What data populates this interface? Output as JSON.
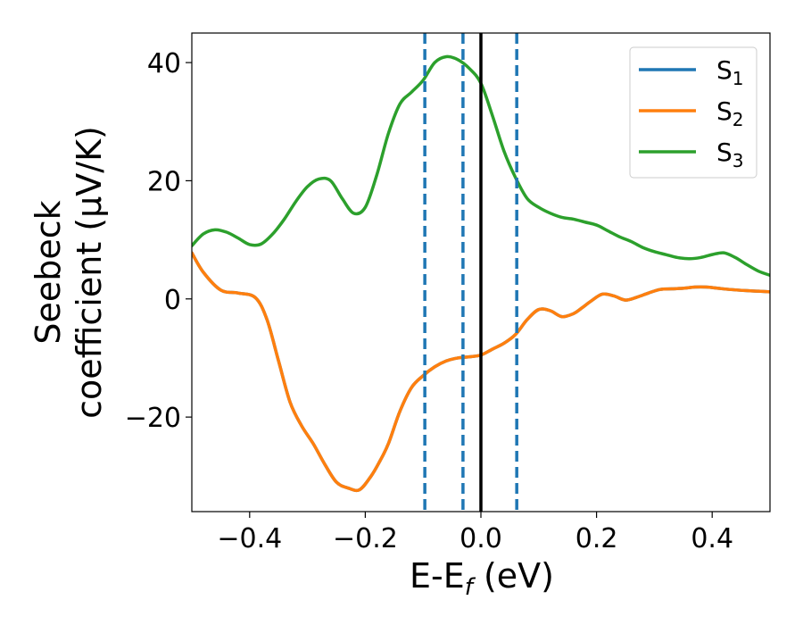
{
  "chart_data": {
    "type": "line",
    "xlabel": {
      "main": "E-E",
      "sub": "f",
      "unit": " (eV)"
    },
    "ylabel": {
      "line1": "Seebeck",
      "line2": "coefficient  (μV/K)"
    },
    "xlim": [
      -0.5,
      0.5
    ],
    "ylim": [
      -36,
      45
    ],
    "xticks": [
      -0.4,
      -0.2,
      0.0,
      0.2,
      0.4
    ],
    "xtick_labels": [
      "−0.4",
      "−0.2",
      "0.0",
      "0.2",
      "0.4"
    ],
    "yticks": [
      -20,
      0,
      20,
      40
    ],
    "ytick_labels": [
      "−20",
      "0",
      "20",
      "40"
    ],
    "grid": false,
    "legend_position": "top-right",
    "vertical_lines": [
      {
        "x": -0.097,
        "style": "dashed",
        "color": "#1f77b4"
      },
      {
        "x": -0.031,
        "style": "dashed",
        "color": "#1f77b4"
      },
      {
        "x": 0.0,
        "style": "solid",
        "color": "#000000"
      },
      {
        "x": 0.062,
        "style": "dashed",
        "color": "#1f77b4"
      }
    ],
    "series": [
      {
        "name": "S",
        "sub": "1",
        "color": "#1f77b4",
        "x": [
          -0.5,
          -0.48,
          -0.45,
          -0.42,
          -0.39,
          -0.37,
          -0.35,
          -0.33,
          -0.31,
          -0.29,
          -0.27,
          -0.25,
          -0.23,
          -0.21,
          -0.19,
          -0.175,
          -0.16,
          -0.14,
          -0.12,
          -0.1,
          -0.08,
          -0.06,
          -0.04,
          -0.02,
          0.0,
          0.02,
          0.04,
          0.06,
          0.08,
          0.1,
          0.12,
          0.14,
          0.16,
          0.175,
          0.19,
          0.21,
          0.23,
          0.25,
          0.27,
          0.29,
          0.31,
          0.33,
          0.35,
          0.37,
          0.39,
          0.41,
          0.43,
          0.46,
          0.48,
          0.5
        ],
        "y": [
          7.8,
          4.5,
          1.5,
          1.0,
          0.2,
          -3.5,
          -10.5,
          -17.5,
          -21.5,
          -24.5,
          -28.0,
          -31.0,
          -32.0,
          -32.3,
          -30.0,
          -27.5,
          -24.5,
          -19.0,
          -15.0,
          -13.0,
          -11.5,
          -10.5,
          -10.0,
          -9.8,
          -9.5,
          -8.5,
          -7.5,
          -6.0,
          -3.5,
          -1.8,
          -2.0,
          -3.0,
          -2.5,
          -1.5,
          -0.4,
          0.8,
          0.5,
          -0.2,
          0.3,
          1.0,
          1.6,
          1.7,
          1.8,
          2.0,
          2.0,
          1.8,
          1.6,
          1.4,
          1.3,
          1.2
        ]
      },
      {
        "name": "S",
        "sub": "2",
        "color": "#ff7f0e",
        "x": [
          -0.5,
          -0.48,
          -0.45,
          -0.42,
          -0.39,
          -0.37,
          -0.35,
          -0.33,
          -0.31,
          -0.29,
          -0.27,
          -0.25,
          -0.23,
          -0.21,
          -0.19,
          -0.175,
          -0.16,
          -0.14,
          -0.12,
          -0.1,
          -0.08,
          -0.06,
          -0.04,
          -0.02,
          0.0,
          0.02,
          0.04,
          0.06,
          0.08,
          0.1,
          0.12,
          0.14,
          0.16,
          0.175,
          0.19,
          0.21,
          0.23,
          0.25,
          0.27,
          0.29,
          0.31,
          0.33,
          0.35,
          0.37,
          0.39,
          0.41,
          0.43,
          0.46,
          0.48,
          0.5
        ],
        "y": [
          7.8,
          4.5,
          1.5,
          1.0,
          0.2,
          -3.5,
          -10.5,
          -17.5,
          -21.5,
          -24.5,
          -28.0,
          -31.0,
          -32.0,
          -32.3,
          -30.0,
          -27.5,
          -24.5,
          -19.0,
          -15.0,
          -13.0,
          -11.5,
          -10.5,
          -10.0,
          -9.8,
          -9.5,
          -8.5,
          -7.5,
          -6.0,
          -3.5,
          -1.8,
          -2.0,
          -3.0,
          -2.5,
          -1.5,
          -0.4,
          0.8,
          0.5,
          -0.2,
          0.3,
          1.0,
          1.6,
          1.7,
          1.8,
          2.0,
          2.0,
          1.8,
          1.6,
          1.4,
          1.3,
          1.2
        ]
      },
      {
        "name": "S",
        "sub": "3",
        "color": "#2ca02c",
        "x": [
          -0.5,
          -0.48,
          -0.46,
          -0.44,
          -0.42,
          -0.4,
          -0.38,
          -0.36,
          -0.34,
          -0.32,
          -0.3,
          -0.28,
          -0.26,
          -0.24,
          -0.22,
          -0.2,
          -0.18,
          -0.16,
          -0.14,
          -0.12,
          -0.1,
          -0.08,
          -0.06,
          -0.04,
          -0.02,
          0.0,
          0.02,
          0.04,
          0.06,
          0.08,
          0.1,
          0.12,
          0.14,
          0.16,
          0.18,
          0.2,
          0.22,
          0.24,
          0.26,
          0.28,
          0.3,
          0.32,
          0.34,
          0.36,
          0.38,
          0.4,
          0.42,
          0.44,
          0.46,
          0.48,
          0.5
        ],
        "y": [
          9.0,
          11.0,
          11.7,
          11.3,
          10.3,
          9.2,
          9.3,
          11.0,
          13.5,
          16.5,
          19.0,
          20.3,
          20.0,
          17.0,
          14.5,
          15.5,
          21.0,
          28.0,
          33.0,
          35.0,
          37.0,
          40.0,
          41.0,
          40.5,
          39.0,
          36.5,
          31.0,
          25.0,
          20.5,
          17.0,
          15.5,
          14.5,
          13.8,
          13.5,
          13.0,
          12.5,
          11.5,
          10.5,
          9.7,
          8.7,
          8.0,
          7.5,
          7.0,
          6.8,
          7.0,
          7.5,
          7.8,
          7.0,
          5.8,
          4.7,
          4.0
        ]
      }
    ]
  }
}
